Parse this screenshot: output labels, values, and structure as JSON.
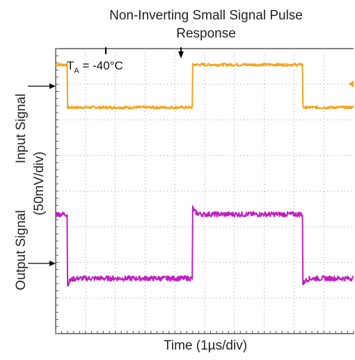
{
  "chart_data": {
    "type": "line",
    "title_lines": [
      "Non-Inverting Small Signal Pulse",
      "Response"
    ],
    "xlabel": "Time (1µs/div)",
    "ylabel_input": "Input Signal",
    "ylabel_output": "Output Signal",
    "ylabel_scale": "(50mV/div)",
    "annotation": {
      "base": "T",
      "sub": "A",
      "rest": " = -40°C"
    },
    "grid": {
      "x_divisions": 10,
      "y_divisions": 8
    },
    "xlim": [
      0,
      10
    ],
    "ylim": [
      0,
      8
    ],
    "series": [
      {
        "color": "#f5a21b",
        "low": 6.35,
        "high": 7.55,
        "edges": [
          {
            "t": 0.4,
            "to": "low"
          },
          {
            "t": 4.6,
            "to": "high"
          },
          {
            "t": 8.3,
            "to": "low"
          }
        ],
        "start": "high",
        "overshoot": 0.0,
        "noise": 0.04
      },
      {
        "color": "#c020c0",
        "low": 1.55,
        "high": 3.35,
        "edges": [
          {
            "t": 0.4,
            "to": "low"
          },
          {
            "t": 4.6,
            "to": "high"
          },
          {
            "t": 8.3,
            "to": "low"
          }
        ],
        "start": "high",
        "overshoot": 0.18,
        "noise": 0.07
      }
    ]
  }
}
